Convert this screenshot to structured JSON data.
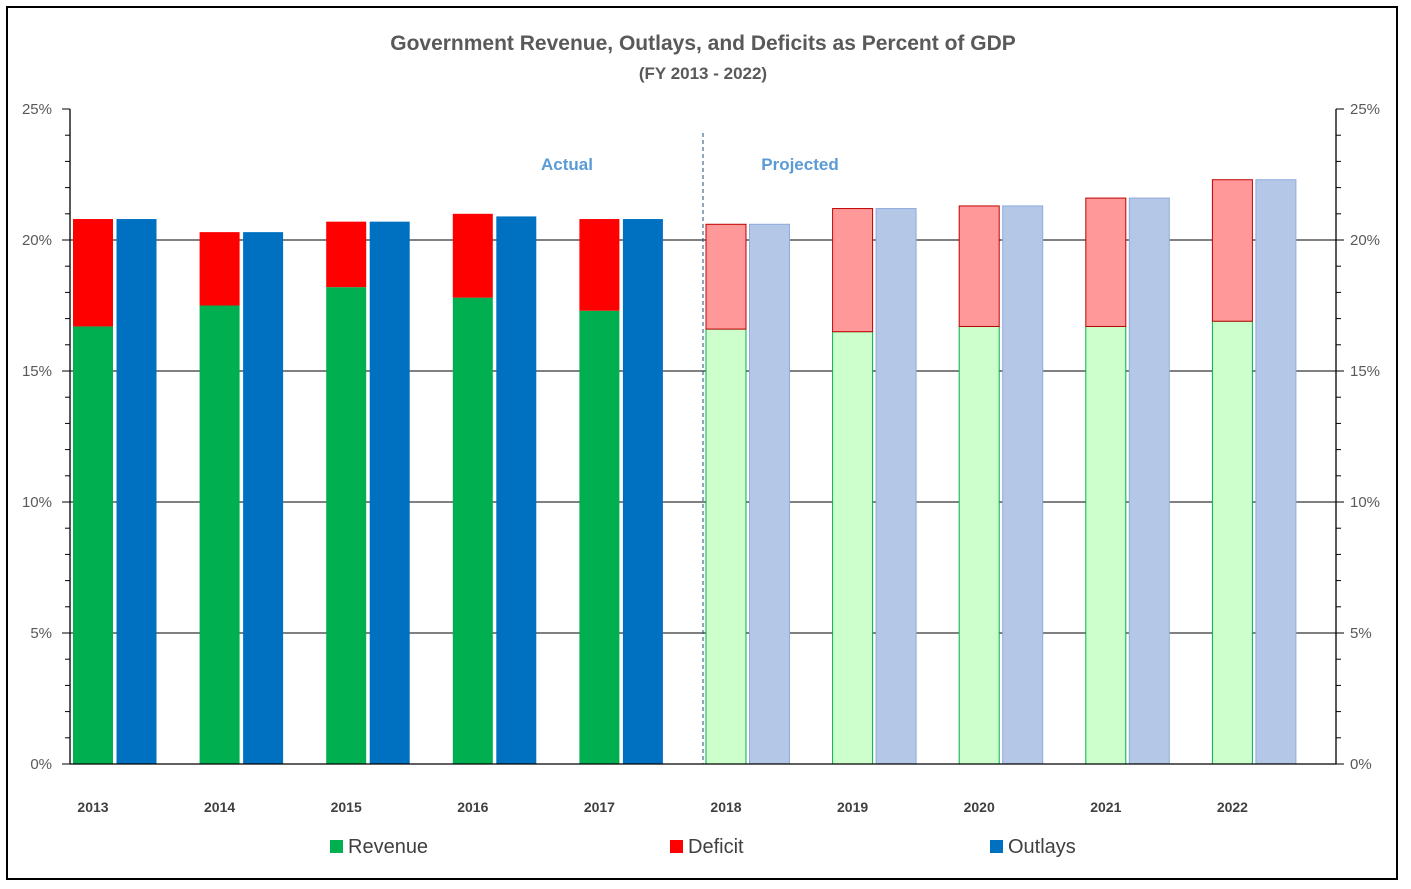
{
  "chart_data": {
    "type": "bar",
    "title": "Government Revenue, Outlays, and Deficits as Percent of GDP",
    "subtitle": "(FY 2013 - 2022)",
    "categories": [
      "2013",
      "2014",
      "2015",
      "2016",
      "2017",
      "2018",
      "2019",
      "2020",
      "2021",
      "2022"
    ],
    "series": [
      {
        "name": "Revenue",
        "values": [
          16.7,
          17.5,
          18.2,
          17.8,
          17.3,
          16.6,
          16.5,
          16.7,
          16.7,
          16.9
        ]
      },
      {
        "name": "Deficit",
        "values": [
          4.1,
          2.8,
          2.5,
          3.2,
          3.5,
          4.0,
          4.7,
          4.6,
          4.9,
          5.4
        ]
      },
      {
        "name": "Outlays",
        "values": [
          20.8,
          20.3,
          20.7,
          20.9,
          20.8,
          20.6,
          21.2,
          21.3,
          21.6,
          22.3
        ]
      }
    ],
    "ylim": [
      0,
      25
    ],
    "yticks": [
      "0%",
      "5%",
      "10%",
      "15%",
      "20%",
      "25%"
    ],
    "ytick_values": [
      0,
      5,
      10,
      15,
      20,
      25
    ],
    "projected_from": "2018",
    "annotations": {
      "actual": "Actual",
      "projected": "Projected"
    },
    "grid": true,
    "legend_position": "bottom"
  },
  "colors": {
    "revenue_actual": "#00b050",
    "revenue_projected": "#ccffcc",
    "revenue_projected_border": "#00b050",
    "deficit_actual": "#ff0000",
    "deficit_projected": "#ff9999",
    "deficit_projected_border": "#c00000",
    "outlays_actual": "#0070c0",
    "outlays_projected": "#b4c7e7",
    "outlays_projected_border": "#8faadc",
    "annotation": "#5b9bd5",
    "title": "#595959"
  }
}
